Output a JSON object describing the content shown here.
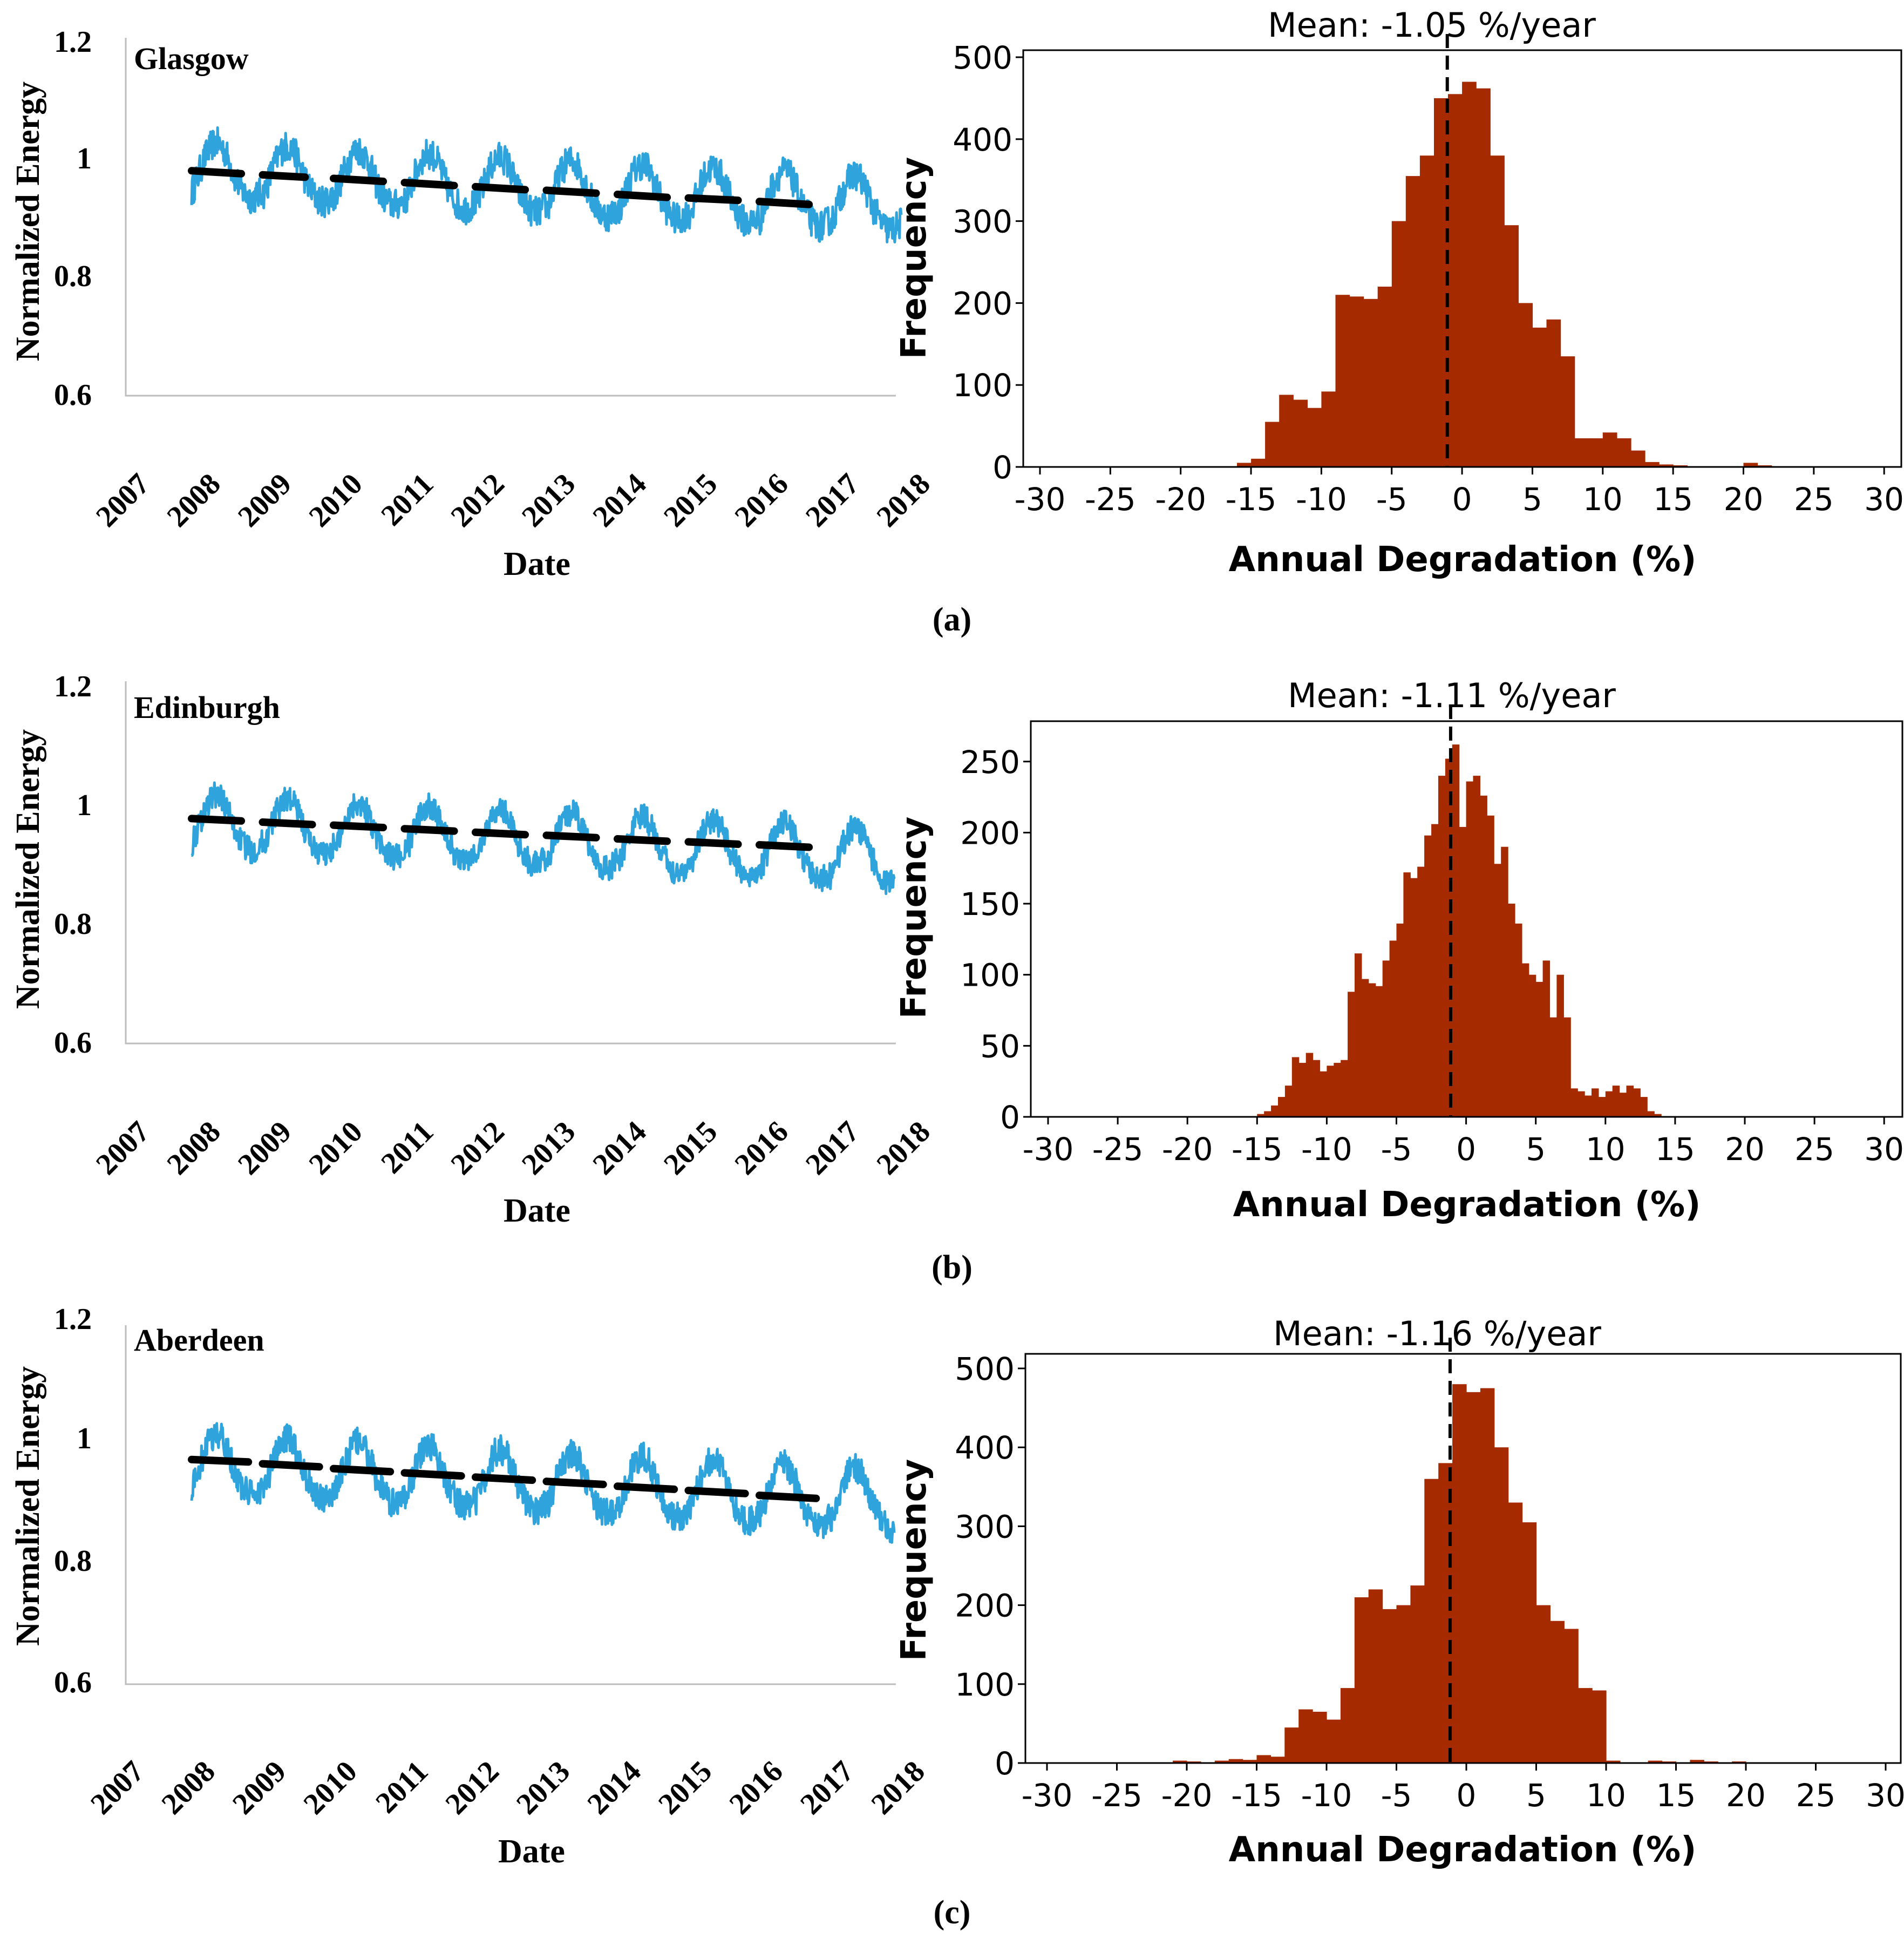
{
  "figure": {
    "time_series_panels": [
      {
        "city": "Glasgow",
        "ylabel": "Normalized Energy",
        "xlabel": "Date",
        "yticks": [
          "1.2",
          "1",
          "0.8",
          "0.6"
        ],
        "xticks": [
          "2007",
          "2008",
          "2009",
          "2010",
          "2011",
          "2012",
          "2013",
          "2014",
          "2015",
          "2016",
          "2017",
          "2018"
        ]
      },
      {
        "city": "Edinburgh",
        "ylabel": "Normalized Energy",
        "xlabel": "Date",
        "yticks": [
          "1.2",
          "1",
          "0.8",
          "0.6"
        ],
        "xticks": [
          "2007",
          "2008",
          "2009",
          "2010",
          "2011",
          "2012",
          "2013",
          "2014",
          "2015",
          "2016",
          "2017",
          "2018"
        ]
      },
      {
        "city": "Aberdeen",
        "ylabel": "Normalized Energy",
        "xlabel": "Date",
        "yticks": [
          "1.2",
          "1",
          "0.8",
          "0.6"
        ],
        "xticks": [
          "2007",
          "2008",
          "2009",
          "2010",
          "2011",
          "2012",
          "2013",
          "2014",
          "2015",
          "2016",
          "2017",
          "2018"
        ]
      }
    ],
    "histogram_panels": [
      {
        "title": "Mean: -1.05 %/year",
        "ylabel": "Frequency",
        "xlabel": "Annual Degradation (%)",
        "yticks": [
          "500",
          "400",
          "300",
          "200",
          "100",
          "0"
        ],
        "xticks": [
          "-30",
          "-25",
          "-20",
          "-15",
          "-10",
          "-5",
          "0",
          "5",
          "10",
          "15",
          "20",
          "25",
          "30"
        ]
      },
      {
        "title": "Mean: -1.11 %/year",
        "ylabel": "Frequency",
        "xlabel": "Annual Degradation (%)",
        "yticks": [
          "250",
          "200",
          "150",
          "100",
          "50",
          "0"
        ],
        "xticks": [
          "-30",
          "-25",
          "-20",
          "-15",
          "-10",
          "-5",
          "0",
          "5",
          "10",
          "15",
          "20",
          "25",
          "30"
        ]
      },
      {
        "title": "Mean: -1.16 %/year",
        "ylabel": "Frequency",
        "xlabel": "Annual Degradation (%)",
        "yticks": [
          "500",
          "400",
          "300",
          "200",
          "100",
          "0"
        ],
        "xticks": [
          "-30",
          "-25",
          "-20",
          "-15",
          "-10",
          "-5",
          "0",
          "5",
          "10",
          "15",
          "20",
          "25",
          "30"
        ]
      }
    ],
    "panel_labels": [
      "(a)",
      "(b)",
      "(c)"
    ],
    "colors": {
      "series": "#2ea3dc",
      "bars": "#a52a00",
      "trend": "#000000"
    }
  },
  "chart_data": [
    {
      "panel": "a-left",
      "type": "line",
      "title": "Glasgow",
      "xlabel": "Date",
      "ylabel": "Normalized Energy",
      "xlim": [
        2007,
        2018.2
      ],
      "ylim": [
        0.6,
        1.2
      ],
      "series": [
        {
          "name": "Normalized Energy",
          "start": 2008.0,
          "end": 2018.0,
          "base_start": 0.975,
          "base_end": 0.915,
          "seasonal_amplitude": 0.045,
          "noise": 0.012
        }
      ],
      "trend_segments": [
        [
          2008.0,
          2008.7,
          0.98,
          0.975
        ],
        [
          2009.0,
          2009.6,
          0.973,
          0.969
        ],
        [
          2010.0,
          2010.7,
          0.967,
          0.962
        ],
        [
          2011.0,
          2011.7,
          0.96,
          0.955
        ],
        [
          2012.0,
          2012.7,
          0.953,
          0.948
        ],
        [
          2013.0,
          2013.7,
          0.947,
          0.942
        ],
        [
          2014.0,
          2014.7,
          0.94,
          0.935
        ],
        [
          2015.0,
          2015.7,
          0.934,
          0.93
        ],
        [
          2016.0,
          2016.7,
          0.928,
          0.923
        ]
      ]
    },
    {
      "panel": "a-right",
      "type": "bar",
      "title": "Mean: -1.05 %/year",
      "xlabel": "Annual Degradation (%)",
      "ylabel": "Frequency",
      "xlim": [
        -31,
        31
      ],
      "ylim": [
        0,
        510
      ],
      "bin_width": 1,
      "mean": -1.05,
      "bins": [
        [
          -16,
          5
        ],
        [
          -15,
          10
        ],
        [
          -14,
          55
        ],
        [
          -13,
          88
        ],
        [
          -12,
          82
        ],
        [
          -11,
          72
        ],
        [
          -10,
          92
        ],
        [
          -9,
          210
        ],
        [
          -8,
          208
        ],
        [
          -7,
          205
        ],
        [
          -6,
          220
        ],
        [
          -5,
          300
        ],
        [
          -4,
          355
        ],
        [
          -3,
          380
        ],
        [
          -2,
          450
        ],
        [
          -1,
          455
        ],
        [
          0,
          470
        ],
        [
          1,
          462
        ],
        [
          2,
          380
        ],
        [
          3,
          295
        ],
        [
          4,
          200
        ],
        [
          5,
          170
        ],
        [
          6,
          180
        ],
        [
          7,
          135
        ],
        [
          8,
          35
        ],
        [
          9,
          35
        ],
        [
          10,
          42
        ],
        [
          11,
          35
        ],
        [
          12,
          20
        ],
        [
          13,
          6
        ],
        [
          14,
          3
        ],
        [
          15,
          2
        ],
        [
          16,
          1
        ],
        [
          17,
          1
        ],
        [
          18,
          0
        ],
        [
          19,
          0
        ],
        [
          20,
          5
        ],
        [
          21,
          2
        ]
      ]
    },
    {
      "panel": "b-left",
      "type": "line",
      "title": "Edinburgh",
      "xlabel": "Date",
      "ylabel": "Normalized Energy",
      "xlim": [
        2007,
        2018.2
      ],
      "ylim": [
        0.6,
        1.2
      ],
      "series": [
        {
          "name": "Normalized Energy",
          "start": 2008.0,
          "end": 2017.9,
          "base_start": 0.965,
          "base_end": 0.905,
          "seasonal_amplitude": 0.045,
          "noise": 0.01
        }
      ],
      "trend_segments": [
        [
          2008.0,
          2008.7,
          0.977,
          0.973
        ],
        [
          2009.0,
          2009.7,
          0.971,
          0.967
        ],
        [
          2010.0,
          2010.7,
          0.966,
          0.962
        ],
        [
          2011.0,
          2011.7,
          0.96,
          0.956
        ],
        [
          2012.0,
          2012.7,
          0.954,
          0.95
        ],
        [
          2013.0,
          2013.7,
          0.949,
          0.945
        ],
        [
          2014.0,
          2014.7,
          0.943,
          0.939
        ],
        [
          2015.0,
          2015.7,
          0.938,
          0.934
        ],
        [
          2016.0,
          2016.7,
          0.933,
          0.929
        ]
      ]
    },
    {
      "panel": "b-right",
      "type": "bar",
      "title": "Mean: -1.11 %/year",
      "xlabel": "Annual Degradation (%)",
      "ylabel": "Frequency",
      "xlim": [
        -31,
        31
      ],
      "ylim": [
        0,
        270
      ],
      "bin_width": 0.5,
      "mean": -1.11,
      "bins": [
        [
          -15,
          2
        ],
        [
          -14.5,
          4
        ],
        [
          -14,
          8
        ],
        [
          -13.5,
          14
        ],
        [
          -13,
          22
        ],
        [
          -12.5,
          42
        ],
        [
          -12,
          38
        ],
        [
          -11.5,
          45
        ],
        [
          -11,
          40
        ],
        [
          -10.5,
          32
        ],
        [
          -10,
          36
        ],
        [
          -9.5,
          38
        ],
        [
          -9,
          40
        ],
        [
          -8.5,
          88
        ],
        [
          -8,
          115
        ],
        [
          -7.5,
          97
        ],
        [
          -7,
          94
        ],
        [
          -6.5,
          92
        ],
        [
          -6,
          110
        ],
        [
          -5.5,
          124
        ],
        [
          -5,
          136
        ],
        [
          -4.5,
          172
        ],
        [
          -4,
          168
        ],
        [
          -3.5,
          176
        ],
        [
          -3,
          198
        ],
        [
          -2.5,
          206
        ],
        [
          -2,
          240
        ],
        [
          -1.5,
          252
        ],
        [
          -1,
          262
        ],
        [
          -0.5,
          204
        ],
        [
          0,
          236
        ],
        [
          0.5,
          240
        ],
        [
          1,
          226
        ],
        [
          1.5,
          212
        ],
        [
          2,
          178
        ],
        [
          2.5,
          190
        ],
        [
          3,
          150
        ],
        [
          3.5,
          136
        ],
        [
          4,
          108
        ],
        [
          4.5,
          100
        ],
        [
          5,
          95
        ],
        [
          5.5,
          110
        ],
        [
          6,
          70
        ],
        [
          6.5,
          100
        ],
        [
          7,
          70
        ],
        [
          7.5,
          20
        ],
        [
          8,
          18
        ],
        [
          8.5,
          15
        ],
        [
          9,
          20
        ],
        [
          9.5,
          14
        ],
        [
          10,
          18
        ],
        [
          10.5,
          22
        ],
        [
          11,
          17
        ],
        [
          11.5,
          22
        ],
        [
          12,
          20
        ],
        [
          12.5,
          14
        ],
        [
          13,
          4
        ],
        [
          13.5,
          2
        ]
      ]
    },
    {
      "panel": "c-left",
      "type": "line",
      "title": "Aberdeen",
      "xlabel": "Date",
      "ylabel": "Normalized Energy",
      "xlim": [
        2007,
        2018.2
      ],
      "ylim": [
        0.6,
        1.2
      ],
      "series": [
        {
          "name": "Normalized Energy",
          "start": 2008.0,
          "end": 2017.9,
          "base_start": 0.955,
          "base_end": 0.895,
          "seasonal_amplitude": 0.048,
          "noise": 0.011
        }
      ],
      "trend_segments": [
        [
          2008.0,
          2008.8,
          0.97,
          0.966
        ],
        [
          2009.0,
          2009.8,
          0.963,
          0.958
        ],
        [
          2010.0,
          2010.8,
          0.955,
          0.95
        ],
        [
          2011.0,
          2011.8,
          0.948,
          0.943
        ],
        [
          2012.0,
          2012.8,
          0.941,
          0.936
        ],
        [
          2013.0,
          2013.8,
          0.934,
          0.929
        ],
        [
          2014.0,
          2014.8,
          0.926,
          0.921
        ],
        [
          2015.0,
          2015.8,
          0.919,
          0.914
        ],
        [
          2016.0,
          2016.8,
          0.911,
          0.906
        ]
      ]
    },
    {
      "panel": "c-right",
      "type": "bar",
      "title": "Mean: -1.16 %/year",
      "xlabel": "Annual Degradation (%)",
      "ylabel": "Frequency",
      "xlim": [
        -31,
        31
      ],
      "ylim": [
        0,
        510
      ],
      "bin_width": 1,
      "mean": -1.16,
      "bins": [
        [
          -21,
          3
        ],
        [
          -20,
          2
        ],
        [
          -18,
          3
        ],
        [
          -17,
          5
        ],
        [
          -16,
          4
        ],
        [
          -15,
          10
        ],
        [
          -14,
          8
        ],
        [
          -13,
          45
        ],
        [
          -12,
          68
        ],
        [
          -11,
          65
        ],
        [
          -10,
          55
        ],
        [
          -9,
          95
        ],
        [
          -8,
          210
        ],
        [
          -7,
          220
        ],
        [
          -6,
          195
        ],
        [
          -5,
          200
        ],
        [
          -4,
          225
        ],
        [
          -3,
          360
        ],
        [
          -2,
          380
        ],
        [
          -1,
          480
        ],
        [
          0,
          470
        ],
        [
          1,
          475
        ],
        [
          2,
          400
        ],
        [
          3,
          330
        ],
        [
          4,
          305
        ],
        [
          5,
          200
        ],
        [
          6,
          180
        ],
        [
          7,
          170
        ],
        [
          8,
          95
        ],
        [
          9,
          92
        ],
        [
          10,
          3
        ],
        [
          11,
          1
        ],
        [
          12,
          0
        ],
        [
          13,
          3
        ],
        [
          14,
          2
        ],
        [
          15,
          1
        ],
        [
          16,
          4
        ],
        [
          17,
          2
        ],
        [
          18,
          0
        ],
        [
          19,
          2
        ],
        [
          20,
          1
        ]
      ]
    }
  ]
}
